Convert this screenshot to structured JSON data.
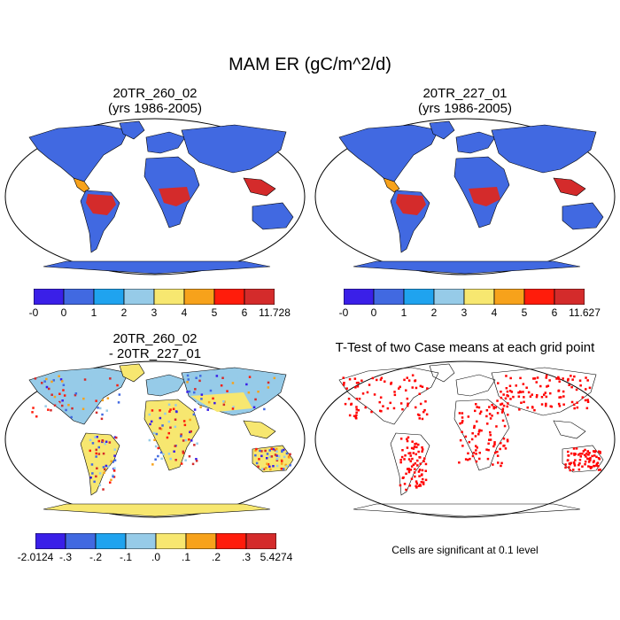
{
  "main_title": "MAM ER (gC/m^2/d)",
  "panels": [
    {
      "title_line1": "20TR_260_02",
      "title_line2": "(yrs 1986-2005)"
    },
    {
      "title_line1": "20TR_227_01",
      "title_line2": "(yrs 1986-2005)"
    },
    {
      "title_line1": "20TR_260_02",
      "title_line2": "- 20TR_227_01"
    },
    {
      "title_line1": "T-Test of two Case means at each grid point",
      "title_line2": ""
    }
  ],
  "colorbars": [
    {
      "colors": [
        "#3a1fe8",
        "#4169e1",
        "#1fa3ef",
        "#96cbe8",
        "#f7e770",
        "#f7a21b",
        "#ff1c0b",
        "#d42b2b"
      ],
      "labels": [
        "-0",
        "0",
        "1",
        "2",
        "3",
        "4",
        "5",
        "6",
        "11.728"
      ]
    },
    {
      "colors": [
        "#3a1fe8",
        "#4169e1",
        "#1fa3ef",
        "#96cbe8",
        "#f7e770",
        "#f7a21b",
        "#ff1c0b",
        "#d42b2b"
      ],
      "labels": [
        "-0",
        "0",
        "1",
        "2",
        "3",
        "4",
        "5",
        "6",
        "11.627"
      ]
    },
    {
      "colors": [
        "#3a1fe8",
        "#4169e1",
        "#1fa3ef",
        "#96cbe8",
        "#f7e770",
        "#f7a21b",
        "#ff1c0b",
        "#d42b2b"
      ],
      "labels": [
        "-2.0124",
        "-.3",
        "-.2",
        "-.1",
        ".0",
        ".1",
        ".2",
        ".3",
        "5.4274"
      ]
    }
  ],
  "ttest_note": "Cells are significant at 0.1 level",
  "map_colors": {
    "ocean": "#ffffff",
    "base_land": "#4169e1",
    "tropical_high": "#d42b2b",
    "mid": "#f7e770",
    "light_blue": "#96cbe8",
    "sig": "#ff0000"
  }
}
